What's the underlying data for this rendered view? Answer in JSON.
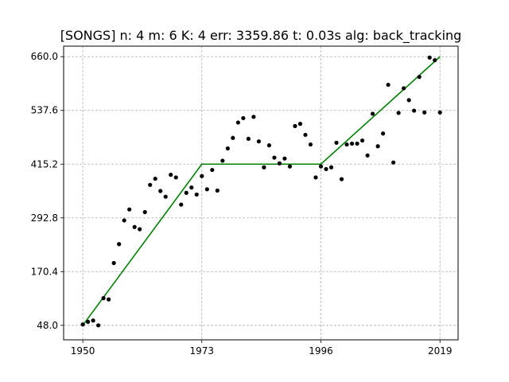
{
  "chart_data": {
    "type": "scatter",
    "title": "[SONGS] n: 4 m: 6 K: 4 err: 3359.86 t: 0.03s alg: back_tracking",
    "xlabel": "",
    "ylabel": "",
    "xlim": [
      1946.3,
      2022.5
    ],
    "ylim": [
      15.0,
      684.0
    ],
    "xticks": [
      1950,
      1973,
      1996,
      2019
    ],
    "xtick_labels": [
      "1950",
      "1973",
      "1996",
      "2019"
    ],
    "yticks": [
      48.0,
      170.4,
      292.8,
      415.2,
      537.6,
      660.0
    ],
    "ytick_labels": [
      "48.0",
      "170.4",
      "292.8",
      "415.2",
      "537.6",
      "660.0"
    ],
    "grid": true,
    "colors": {
      "points": "#000000",
      "fit": "#008000"
    },
    "series": [
      {
        "type": "scatter",
        "points": [
          [
            1950,
            50
          ],
          [
            1951,
            56
          ],
          [
            1952,
            59
          ],
          [
            1953,
            48
          ],
          [
            1954,
            110
          ],
          [
            1955,
            107
          ],
          [
            1956,
            190
          ],
          [
            1957,
            233
          ],
          [
            1958,
            287
          ],
          [
            1959,
            312
          ],
          [
            1960,
            272
          ],
          [
            1961,
            267
          ],
          [
            1962,
            306
          ],
          [
            1963,
            368
          ],
          [
            1964,
            382
          ],
          [
            1965,
            354
          ],
          [
            1966,
            341
          ],
          [
            1967,
            391
          ],
          [
            1968,
            385
          ],
          [
            1969,
            323
          ],
          [
            1970,
            350
          ],
          [
            1971,
            362
          ],
          [
            1972,
            346
          ],
          [
            1973,
            388
          ],
          [
            1974,
            358
          ],
          [
            1975,
            402
          ],
          [
            1976,
            355
          ],
          [
            1977,
            423
          ],
          [
            1978,
            451
          ],
          [
            1979,
            475
          ],
          [
            1980,
            510
          ],
          [
            1981,
            520
          ],
          [
            1982,
            473
          ],
          [
            1983,
            523
          ],
          [
            1984,
            467
          ],
          [
            1985,
            408
          ],
          [
            1986,
            458
          ],
          [
            1987,
            430
          ],
          [
            1988,
            417
          ],
          [
            1989,
            428
          ],
          [
            1990,
            410
          ],
          [
            1991,
            502
          ],
          [
            1992,
            507
          ],
          [
            1993,
            482
          ],
          [
            1994,
            460
          ],
          [
            1995,
            385
          ],
          [
            1996,
            410
          ],
          [
            1997,
            404
          ],
          [
            1998,
            408
          ],
          [
            1999,
            464
          ],
          [
            2000,
            381
          ],
          [
            2001,
            460
          ],
          [
            2002,
            462
          ],
          [
            2003,
            462
          ],
          [
            2004,
            469
          ],
          [
            2005,
            435
          ],
          [
            2006,
            530
          ],
          [
            2007,
            456
          ],
          [
            2008,
            485
          ],
          [
            2009,
            596
          ],
          [
            2010,
            419
          ],
          [
            2011,
            532
          ],
          [
            2012,
            588
          ],
          [
            2013,
            561
          ],
          [
            2014,
            537
          ],
          [
            2015,
            614
          ],
          [
            2016,
            533
          ],
          [
            2017,
            658
          ],
          [
            2018,
            652
          ],
          [
            2019,
            533
          ]
        ]
      },
      {
        "type": "line",
        "points": [
          [
            1950,
            48.0
          ],
          [
            1973,
            415.2
          ],
          [
            1996,
            415.2
          ],
          [
            2019,
            660.0
          ]
        ]
      }
    ]
  }
}
